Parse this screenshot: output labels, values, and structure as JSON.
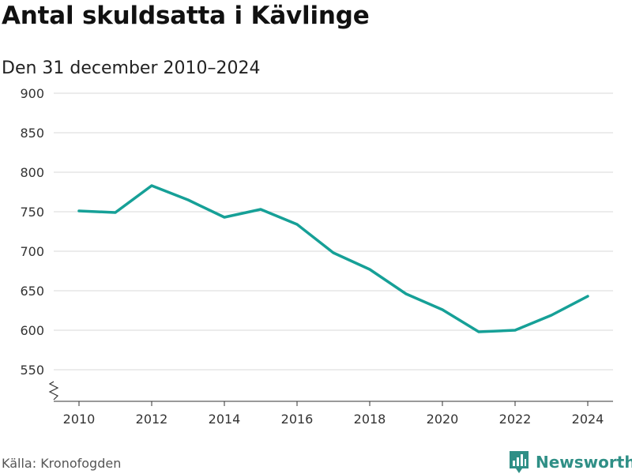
{
  "chart_data": {
    "type": "line",
    "title": "Antal skuldsatta i Kävlinge",
    "subtitle": "Den 31 december 2010–2024",
    "x": [
      2010,
      2011,
      2012,
      2013,
      2014,
      2015,
      2016,
      2017,
      2018,
      2019,
      2020,
      2021,
      2022,
      2023,
      2024
    ],
    "series": [
      {
        "values": [
          751,
          749,
          783,
          765,
          743,
          753,
          734,
          698,
          677,
          646,
          626,
          598,
          600,
          619,
          643
        ]
      }
    ],
    "ylim": [
      510,
      900
    ],
    "yticks": [
      550,
      600,
      650,
      700,
      750,
      800,
      850,
      900
    ],
    "xticks": [
      2010,
      2012,
      2014,
      2016,
      2018,
      2020,
      2022,
      2024
    ],
    "axis_break": true,
    "grid": true,
    "line_color": "#16a097"
  },
  "footer": {
    "source": "Källa: Kronofogden",
    "brand": "Newsworthy",
    "brand_color": "#2f8f86",
    "brand_icon": "bar-chart-icon"
  }
}
